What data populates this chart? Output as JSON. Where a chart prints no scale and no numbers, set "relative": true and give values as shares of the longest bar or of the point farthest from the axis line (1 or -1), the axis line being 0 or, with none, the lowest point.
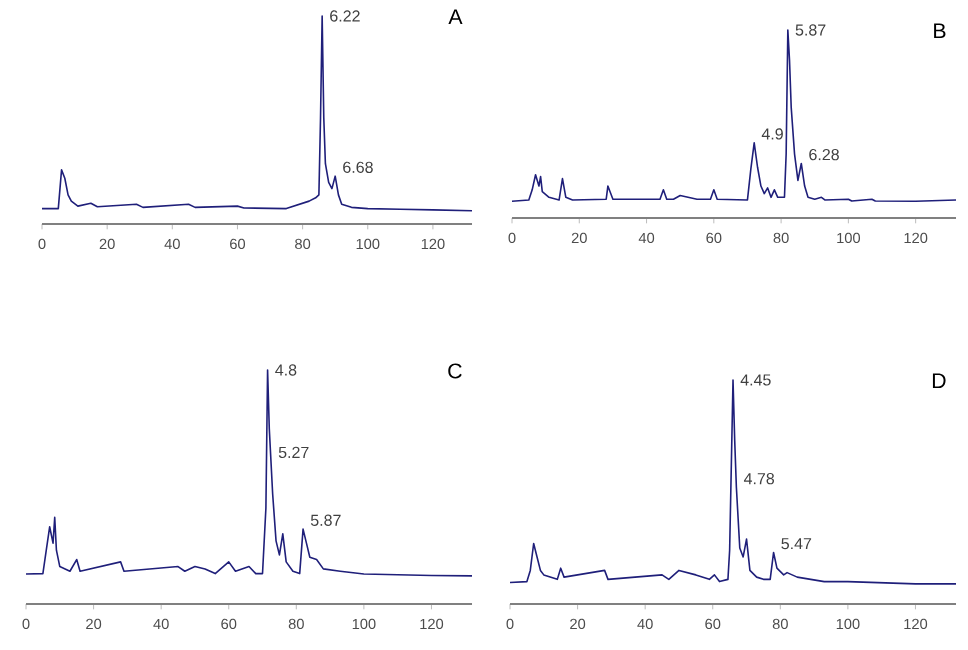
{
  "chart_data": [
    {
      "type": "line",
      "title": "A",
      "relative": true,
      "color": "#1f1f7a",
      "xlim": [
        0,
        132
      ],
      "xticks": [
        0,
        20,
        40,
        60,
        80,
        100,
        120
      ],
      "x": [
        0,
        5,
        6,
        7,
        8,
        9,
        11,
        15,
        17,
        29,
        31,
        45,
        47,
        60,
        62,
        75,
        82,
        84,
        85,
        85.5,
        86,
        86.5,
        87,
        88,
        89,
        90,
        91,
        92,
        95,
        100,
        110,
        120,
        132
      ],
      "values": [
        0.074,
        0.074,
        0.26,
        0.22,
        0.14,
        0.11,
        0.086,
        0.1,
        0.083,
        0.095,
        0.08,
        0.095,
        0.08,
        0.086,
        0.077,
        0.074,
        0.11,
        0.126,
        0.14,
        0.51,
        1,
        0.51,
        0.29,
        0.2,
        0.17,
        0.23,
        0.14,
        0.095,
        0.08,
        0.074,
        0.071,
        0.068,
        0.064
      ],
      "annotations": [
        {
          "text": "6.22",
          "x": 86,
          "y": 1
        },
        {
          "text": "6.68",
          "x": 90,
          "y": 0.23
        }
      ]
    },
    {
      "type": "line",
      "title": "B",
      "relative": true,
      "color": "#1f1f7a",
      "xlim": [
        0,
        132
      ],
      "xticks": [
        0,
        20,
        40,
        60,
        80,
        100,
        120
      ],
      "x": [
        0,
        5,
        6,
        7,
        8,
        8.5,
        9,
        11,
        14,
        15,
        16,
        18,
        28,
        28.5,
        30,
        44,
        45,
        46,
        48,
        50,
        55,
        59,
        60,
        61,
        70,
        71,
        72,
        73,
        74,
        75,
        76,
        77,
        78,
        79,
        81,
        81.5,
        82,
        82.5,
        83,
        84,
        85,
        86,
        87,
        88,
        90,
        92,
        93,
        100,
        101,
        107,
        108,
        120,
        132
      ],
      "values": [
        0.089,
        0.096,
        0.15,
        0.23,
        0.17,
        0.22,
        0.14,
        0.11,
        0.096,
        0.21,
        0.11,
        0.096,
        0.1,
        0.17,
        0.1,
        0.1,
        0.15,
        0.1,
        0.1,
        0.12,
        0.1,
        0.1,
        0.15,
        0.1,
        0.096,
        0.26,
        0.4,
        0.27,
        0.17,
        0.13,
        0.16,
        0.11,
        0.15,
        0.11,
        0.11,
        0.34,
        1,
        0.84,
        0.59,
        0.34,
        0.2,
        0.29,
        0.17,
        0.11,
        0.1,
        0.11,
        0.096,
        0.1,
        0.09,
        0.1,
        0.09,
        0.089,
        0.096
      ],
      "annotations": [
        {
          "text": "4.9",
          "x": 72,
          "y": 0.4
        },
        {
          "text": "5.87",
          "x": 82,
          "y": 1
        },
        {
          "text": "6.28",
          "x": 86,
          "y": 0.29
        }
      ]
    },
    {
      "type": "line",
      "title": "C",
      "relative": true,
      "color": "#1f1f7a",
      "xlim": [
        0,
        132
      ],
      "xticks": [
        0,
        20,
        40,
        60,
        80,
        100,
        120
      ],
      "x": [
        0,
        5,
        6,
        7,
        8,
        8.5,
        9,
        10,
        13,
        15,
        16,
        28,
        29,
        45,
        47,
        50,
        53,
        56,
        60,
        62,
        66,
        68,
        70,
        71,
        71.5,
        72,
        73,
        74,
        75,
        76,
        77,
        79,
        81,
        82,
        83,
        84,
        86,
        88,
        93,
        100,
        110,
        120,
        132
      ],
      "values": [
        0.128,
        0.13,
        0.23,
        0.33,
        0.26,
        0.37,
        0.23,
        0.16,
        0.14,
        0.19,
        0.14,
        0.18,
        0.14,
        0.16,
        0.14,
        0.16,
        0.15,
        0.13,
        0.18,
        0.14,
        0.16,
        0.13,
        0.13,
        0.41,
        1,
        0.75,
        0.47,
        0.27,
        0.21,
        0.3,
        0.18,
        0.14,
        0.13,
        0.32,
        0.26,
        0.2,
        0.19,
        0.15,
        0.14,
        0.128,
        0.125,
        0.122,
        0.12
      ],
      "annotations": [
        {
          "text": "4.8",
          "x": 71.5,
          "y": 1
        },
        {
          "text": "5.27",
          "x": 72.5,
          "y": 0.61
        },
        {
          "text": "5.87",
          "x": 82,
          "y": 0.32
        }
      ]
    },
    {
      "type": "line",
      "title": "D",
      "relative": true,
      "color": "#1f1f7a",
      "xlim": [
        0,
        132
      ],
      "xticks": [
        0,
        20,
        40,
        60,
        80,
        100,
        120
      ],
      "x": [
        0,
        5,
        6,
        7,
        8,
        9,
        10,
        14,
        15,
        16,
        28,
        29,
        45,
        47,
        50,
        55,
        59,
        60.5,
        62,
        64.5,
        65,
        66,
        66.5,
        67,
        68,
        69,
        70,
        71,
        73,
        75,
        77,
        78,
        79,
        81,
        82,
        85,
        93,
        100,
        120,
        132
      ],
      "values": [
        0.096,
        0.1,
        0.15,
        0.27,
        0.21,
        0.15,
        0.13,
        0.11,
        0.16,
        0.12,
        0.15,
        0.11,
        0.13,
        0.11,
        0.15,
        0.13,
        0.11,
        0.13,
        0.1,
        0.11,
        0.24,
        1,
        0.73,
        0.52,
        0.25,
        0.21,
        0.29,
        0.15,
        0.12,
        0.11,
        0.11,
        0.23,
        0.16,
        0.13,
        0.14,
        0.12,
        0.1,
        0.1,
        0.09,
        0.09
      ],
      "annotations": [
        {
          "text": "4.45",
          "x": 66,
          "y": 1
        },
        {
          "text": "4.78",
          "x": 67,
          "y": 0.52
        },
        {
          "text": "5.47",
          "x": 78,
          "y": 0.23
        }
      ]
    }
  ]
}
